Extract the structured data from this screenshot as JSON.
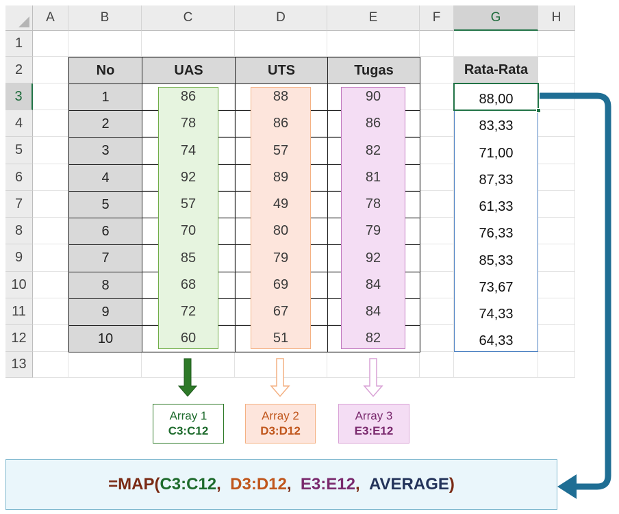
{
  "columns": [
    "A",
    "B",
    "C",
    "D",
    "E",
    "F",
    "G",
    "H"
  ],
  "rows": [
    "1",
    "2",
    "3",
    "4",
    "5",
    "6",
    "7",
    "8",
    "9",
    "10",
    "11",
    "12",
    "13"
  ],
  "selected_column": "G",
  "selected_row": "3",
  "table": {
    "headers": [
      "No",
      "UAS",
      "UTS",
      "Tugas"
    ],
    "no": [
      "1",
      "2",
      "3",
      "4",
      "5",
      "6",
      "7",
      "8",
      "9",
      "10"
    ],
    "uas": [
      "86",
      "78",
      "74",
      "92",
      "57",
      "70",
      "85",
      "68",
      "72",
      "60"
    ],
    "uts": [
      "88",
      "86",
      "57",
      "89",
      "49",
      "80",
      "79",
      "69",
      "67",
      "51"
    ],
    "tugas": [
      "90",
      "86",
      "82",
      "81",
      "78",
      "79",
      "92",
      "84",
      "84",
      "82"
    ]
  },
  "result": {
    "header": "Rata-Rata",
    "values": [
      "88,00",
      "83,33",
      "71,00",
      "87,33",
      "61,33",
      "76,33",
      "85,33",
      "73,67",
      "74,33",
      "64,33"
    ]
  },
  "arrays": [
    {
      "name": "Array 1",
      "range": "C3:C12",
      "color": "#1e6b2d"
    },
    {
      "name": "Array 2",
      "range": "D3:D12",
      "color": "#c0561c"
    },
    {
      "name": "Array 3",
      "range": "E3:E12",
      "color": "#7a2a6e"
    }
  ],
  "formula": {
    "prefix": "=MAP(",
    "arg1": "C3:C12",
    "sep1": ",  ",
    "arg2": "D3:D12",
    "sep2": ",  ",
    "arg3": "E3:E12",
    "sep3": ",  ",
    "func": "AVERAGE",
    "suffix": ")",
    "colors": {
      "base": "#7a2a14",
      "arg1": "#1e6b2d",
      "arg2": "#c0561c",
      "arg3": "#7a2a6e",
      "func": "#23335a"
    }
  },
  "colors": {
    "uas_fill": "#e6f4df",
    "uas_border": "#70ad47",
    "uts_fill": "#fde5dc",
    "uts_border": "#f4b183",
    "tugas_fill": "#f4ddf4",
    "tugas_border": "#c27ac0",
    "arrow_blue": "#1f6e94",
    "selection_green": "#217346"
  },
  "icons": [
    "select-all-triangle-icon",
    "down-arrow-green-icon",
    "down-arrow-orange-icon",
    "down-arrow-purple-icon",
    "connector-arrow-icon"
  ]
}
